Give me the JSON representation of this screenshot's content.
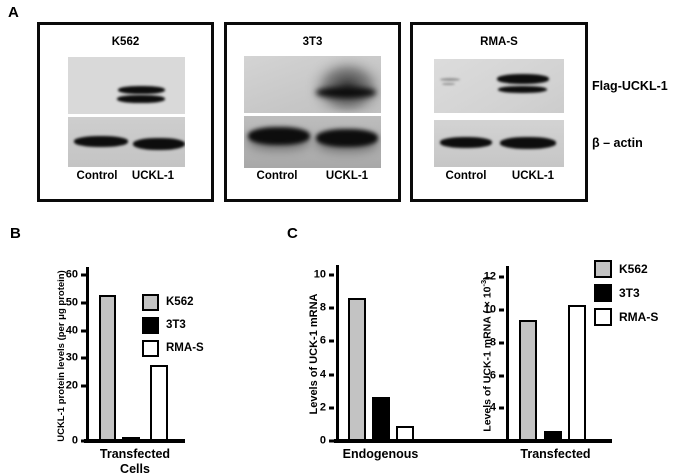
{
  "figure_labels": {
    "panel_a": "A",
    "panel_b": "B",
    "panel_c": "C"
  },
  "panel_a": {
    "blots": [
      {
        "cell_line": "K562",
        "lane_labels": [
          "Control",
          "UCKL-1"
        ]
      },
      {
        "cell_line": "3T3",
        "lane_labels": [
          "Control",
          "UCKL-1"
        ]
      },
      {
        "cell_line": "RMA-S",
        "lane_labels": [
          "Control",
          "UCKL-1"
        ]
      }
    ],
    "band_labels": [
      "Flag-UCKL-1",
      "β – actin"
    ]
  },
  "legend": {
    "entries": [
      {
        "label": "K562",
        "color": "#c3c3c3"
      },
      {
        "label": "3T3",
        "color": "#000000"
      },
      {
        "label": "RMA-S",
        "color": "#ffffff"
      }
    ]
  },
  "chart_data": [
    {
      "panel": "B",
      "type": "bar",
      "categories": [
        "K562",
        "3T3",
        "RMA-S"
      ],
      "values": [
        53,
        1.5,
        27.5
      ],
      "bar_colors": [
        "#c3c3c3",
        "#000000",
        "#ffffff"
      ],
      "xlabel": "Transfected Cells",
      "xlabel_lines": [
        "Transfected",
        "Cells"
      ],
      "ylabel": "UCKL-1 protein levels (per μg protein)",
      "ylim": [
        0,
        63
      ],
      "yticks": [
        0,
        20,
        30,
        40,
        50,
        60
      ],
      "legend": [
        "K562",
        "3T3",
        "RMA-S"
      ],
      "legend_position": "upper right",
      "grid": false
    },
    {
      "panel": "C-left",
      "type": "bar",
      "categories": [
        "K562",
        "3T3",
        "RMA-S"
      ],
      "values": [
        8.6,
        2.65,
        0.9
      ],
      "bar_colors": [
        "#c3c3c3",
        "#000000",
        "#ffffff"
      ],
      "xlabel": "Endogenous",
      "ylabel": "Levels of UCK-1 mRNA",
      "ylim": [
        0,
        10.6
      ],
      "yticks": [
        0,
        2,
        4,
        6,
        8,
        10
      ],
      "legend_position": "none",
      "grid": false
    },
    {
      "panel": "C-right",
      "type": "bar",
      "categories": [
        "K562",
        "3T3",
        "RMA-S"
      ],
      "values": [
        9.4,
        2.6,
        10.3
      ],
      "bar_colors": [
        "#c3c3c3",
        "#000000",
        "#ffffff"
      ],
      "xlabel": "Transfected",
      "ylabel": "Levels of UCK-1 mRNA ( × 10-3)",
      "ylabel_prefix": "Levels of UCK-1 mRNA ( × 10",
      "ylabel_sup": "-3",
      "ylabel_suffix": ")",
      "ylim": [
        2,
        12.7
      ],
      "yticks": [
        4,
        6,
        8,
        10,
        12
      ],
      "legend": [
        "K562",
        "3T3",
        "RMA-S"
      ],
      "legend_position": "upper right",
      "grid": false
    }
  ]
}
